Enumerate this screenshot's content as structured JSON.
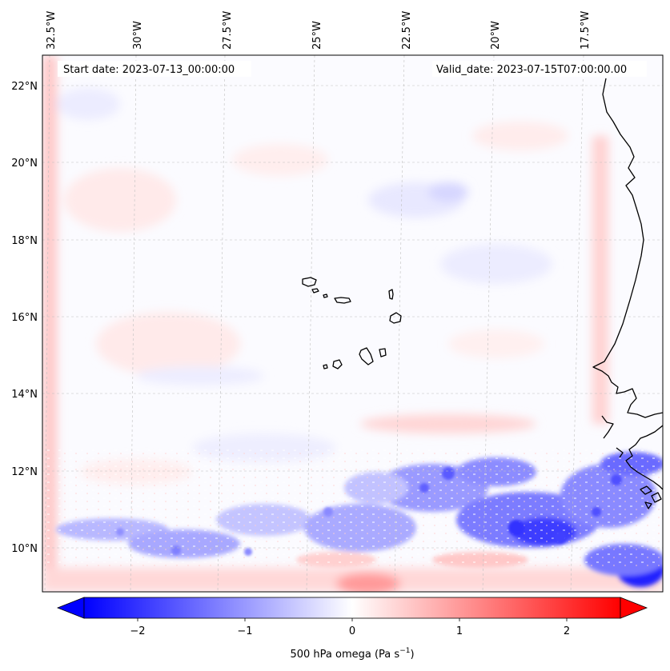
{
  "map": {
    "start_date_text": "Start date: 2023-07-13_00:00:00",
    "valid_date_text": "Valid_date: 2023-07-15T07:00:00.00",
    "lon_labels": [
      "32.5°W",
      "30°W",
      "27.5°W",
      "25°W",
      "22.5°W",
      "20°W",
      "17.5°W"
    ],
    "lat_labels": [
      "22°N",
      "20°N",
      "18°N",
      "16°N",
      "14°N",
      "12°N",
      "10°N"
    ],
    "variable": "500 hPa omega",
    "unit": "Pa s",
    "unit_exponent": "−1"
  },
  "colorbar": {
    "tick_labels": [
      "−2",
      "−1",
      "0",
      "1",
      "2"
    ],
    "colormap": "bwr",
    "min_color": "#0000ff",
    "mid_color": "#ffffff",
    "max_color": "#ff0000"
  },
  "colors": {
    "coastline": "#000000",
    "gridline": "#b0b0b0"
  }
}
